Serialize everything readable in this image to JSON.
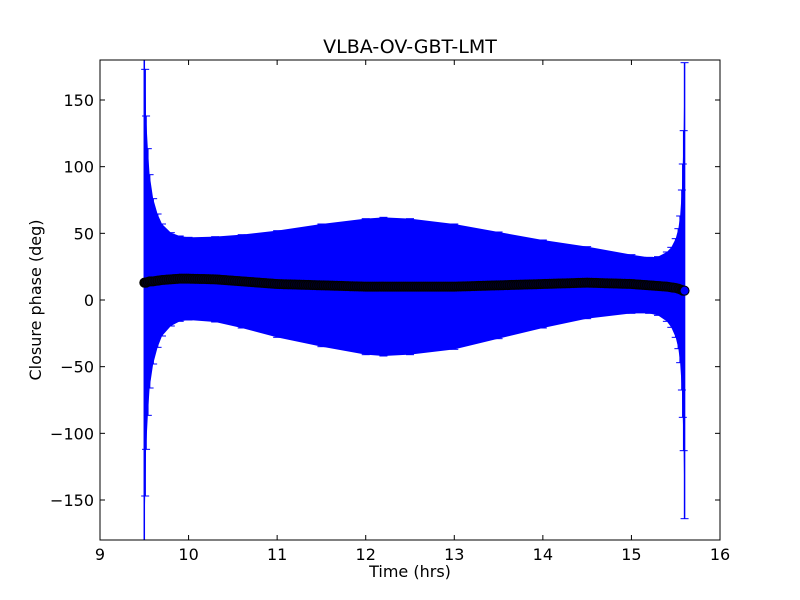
{
  "chart_data": {
    "type": "scatter",
    "title": "VLBA-OV-GBT-LMT",
    "xlabel": "Time (hrs)",
    "ylabel": "Closure phase (deg)",
    "xlim": [
      9,
      16
    ],
    "ylim": [
      -180,
      180
    ],
    "xticks": [
      9,
      10,
      11,
      12,
      13,
      14,
      15,
      16
    ],
    "yticks": [
      -150,
      -100,
      -50,
      0,
      50,
      100,
      150
    ],
    "xtick_labels": [
      "9",
      "10",
      "11",
      "12",
      "13",
      "14",
      "15",
      "16"
    ],
    "ytick_labels": [
      "−150",
      "−100",
      "−50",
      "0",
      "50",
      "100",
      "150"
    ],
    "grid": false,
    "series": [
      {
        "name": "closure phase",
        "marker_color": "#000000",
        "errorbar_color": "#0000ff",
        "x": [
          9.5,
          9.51,
          9.52,
          9.54,
          9.56,
          9.6,
          9.65,
          9.7,
          9.8,
          9.9,
          10.0,
          10.3,
          10.6,
          11.0,
          11.5,
          12.0,
          12.2,
          12.5,
          13.0,
          13.5,
          14.0,
          14.5,
          15.0,
          15.2,
          15.3,
          15.4,
          15.45,
          15.5,
          15.53,
          15.55,
          15.57,
          15.58,
          15.59,
          15.6
        ],
        "y": [
          13,
          13,
          13,
          13.5,
          14,
          14,
          14.5,
          15,
          15.5,
          16,
          16,
          15.5,
          14,
          12,
          11,
          10,
          10,
          10,
          10,
          11,
          12,
          13,
          12,
          11,
          10.5,
          10,
          9.5,
          9,
          8.5,
          8,
          7.5,
          7,
          7,
          7
        ],
        "err": [
          400,
          160,
          125,
          100,
          80,
          62,
          50,
          42,
          35,
          32,
          31,
          32,
          35,
          40,
          46,
          51,
          52,
          51,
          47,
          40,
          33,
          27,
          22,
          21,
          22,
          26,
          30,
          37,
          45,
          55,
          75,
          95,
          120,
          171
        ]
      }
    ]
  }
}
